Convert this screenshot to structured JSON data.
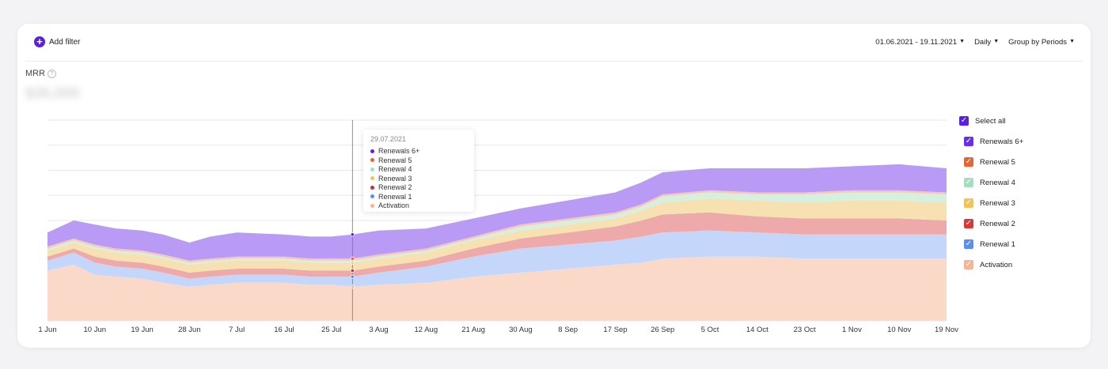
{
  "toolbar": {
    "add_filter": "Add filter",
    "date_range": "01.06.2021 - 19.11.2021",
    "interval": "Daily",
    "grouping": "Group by Periods"
  },
  "metric": {
    "label": "MRR",
    "value": "$35,000"
  },
  "legend": {
    "select_all": "Select all",
    "items": [
      {
        "name": "Renewals 6+",
        "color": "#6a2ee8"
      },
      {
        "name": "Renewal 5",
        "color": "#e6643a"
      },
      {
        "name": "Renewal 4",
        "color": "#a5dfc0"
      },
      {
        "name": "Renewal 3",
        "color": "#f1c45a"
      },
      {
        "name": "Renewal 2",
        "color": "#d63a3a"
      },
      {
        "name": "Renewal 1",
        "color": "#5a8ff0"
      },
      {
        "name": "Activation",
        "color": "#f6b594"
      }
    ]
  },
  "tooltip": {
    "date": "29.07.2021",
    "rows": [
      {
        "label": "Renewals 6+",
        "color": "#5b1fe0"
      },
      {
        "label": "Renewal 5",
        "color": "#e6643a"
      },
      {
        "label": "Renewal 4",
        "color": "#a5dfc0"
      },
      {
        "label": "Renewal 3",
        "color": "#f1c45a"
      },
      {
        "label": "Renewal 2",
        "color": "#c42f2f"
      },
      {
        "label": "Renewal 1",
        "color": "#5a8ff0"
      },
      {
        "label": "Activation",
        "color": "#f6b594"
      }
    ]
  },
  "chart_data": {
    "type": "area",
    "stacked": true,
    "x_tick_labels": [
      "1 Jun",
      "10 Jun",
      "19 Jun",
      "28 Jun",
      "7 Jul",
      "16 Jul",
      "25 Jul",
      "3 Aug",
      "12 Aug",
      "21 Aug",
      "30 Aug",
      "8 Sep",
      "17 Sep",
      "26 Sep",
      "5 Oct",
      "14 Oct",
      "23 Oct",
      "1 Nov",
      "10 Nov",
      "19 Nov"
    ],
    "x_day_offsets": [
      0,
      9,
      18,
      27,
      36,
      45,
      54,
      63,
      72,
      81,
      90,
      99,
      108,
      117,
      126,
      135,
      144,
      153,
      162,
      171
    ],
    "ylim": [
      0,
      100
    ],
    "grid": true,
    "legend_position": "right",
    "hover_day_offset": 58,
    "series": [
      {
        "name": "Activation",
        "color": "#fbd9c8",
        "x": [
          0,
          5,
          9,
          13,
          18,
          22,
          27,
          31,
          36,
          45,
          50,
          54,
          58,
          63,
          72,
          81,
          90,
          99,
          108,
          113,
          117,
          126,
          135,
          144,
          153,
          162,
          171
        ],
        "y": [
          25,
          28,
          23,
          22,
          21,
          19,
          17,
          18,
          19,
          19,
          18,
          18,
          17,
          18,
          19,
          22,
          24,
          26,
          28,
          29,
          31,
          32,
          32,
          31,
          31,
          31,
          31
        ]
      },
      {
        "name": "Renewal 1",
        "color": "#c4d7fa",
        "x": [
          0,
          5,
          9,
          13,
          18,
          22,
          27,
          31,
          36,
          45,
          50,
          54,
          58,
          63,
          72,
          81,
          90,
          99,
          108,
          113,
          117,
          126,
          135,
          144,
          153,
          162,
          171
        ],
        "y": [
          5,
          6,
          6,
          5,
          5,
          5,
          4,
          4,
          4,
          4,
          4,
          4,
          5,
          6,
          8,
          10,
          12,
          12,
          12,
          13,
          13,
          13,
          12,
          12,
          12,
          12,
          12
        ]
      },
      {
        "name": "Renewal 2",
        "color": "#eeaaaa",
        "x": [
          0,
          5,
          9,
          13,
          18,
          22,
          27,
          31,
          36,
          45,
          50,
          54,
          58,
          63,
          72,
          81,
          90,
          99,
          108,
          113,
          117,
          126,
          135,
          144,
          153,
          162,
          171
        ],
        "y": [
          2,
          2,
          3,
          3,
          3,
          3,
          3,
          3,
          3,
          3,
          3,
          3,
          3,
          3,
          3,
          4,
          5,
          6,
          7,
          8,
          9,
          9,
          8,
          8,
          8,
          8,
          7
        ]
      },
      {
        "name": "Renewal 3",
        "color": "#f7e1b3",
        "x": [
          0,
          5,
          9,
          13,
          18,
          22,
          27,
          31,
          36,
          45,
          50,
          54,
          58,
          63,
          72,
          81,
          90,
          99,
          108,
          113,
          117,
          126,
          135,
          144,
          153,
          162,
          171
        ],
        "y": [
          3,
          3,
          4,
          4,
          4,
          4,
          4,
          4,
          4,
          4,
          4,
          4,
          4,
          4,
          4,
          4,
          4,
          4,
          4,
          5,
          6,
          7,
          8,
          8,
          9,
          9,
          9
        ]
      },
      {
        "name": "Renewal 4",
        "color": "#d6f0e0",
        "x": [
          0,
          5,
          9,
          13,
          18,
          22,
          27,
          31,
          36,
          45,
          50,
          54,
          58,
          63,
          72,
          81,
          90,
          99,
          108,
          113,
          117,
          126,
          135,
          144,
          153,
          162,
          171
        ],
        "y": [
          1,
          1,
          1,
          1,
          1,
          1,
          1,
          1,
          1,
          1,
          1,
          1,
          1,
          1,
          1,
          1,
          2,
          2,
          2,
          2,
          3,
          3,
          3,
          4,
          4,
          4,
          4
        ]
      },
      {
        "name": "Renewal 5",
        "color": "#f6c9b0",
        "x": [
          0,
          5,
          9,
          13,
          18,
          22,
          27,
          31,
          36,
          45,
          50,
          54,
          58,
          63,
          72,
          81,
          90,
          99,
          108,
          113,
          117,
          126,
          135,
          144,
          153,
          162,
          171
        ],
        "y": [
          1,
          1,
          1,
          1,
          1,
          1,
          1,
          1,
          1,
          1,
          1,
          1,
          1,
          1,
          1,
          1,
          1,
          1,
          1,
          1,
          1,
          1,
          1,
          1,
          1,
          1,
          1
        ]
      },
      {
        "name": "Renewals 6+",
        "color": "#b99bf6",
        "x": [
          0,
          5,
          9,
          13,
          18,
          22,
          27,
          31,
          36,
          45,
          50,
          54,
          58,
          63,
          72,
          81,
          90,
          99,
          108,
          113,
          117,
          126,
          135,
          144,
          153,
          162,
          171
        ],
        "y": [
          7,
          9,
          10,
          10,
          10,
          10,
          9,
          11,
          12,
          11,
          11,
          11,
          12,
          12,
          10,
          9,
          8,
          9,
          10,
          11,
          11,
          11,
          12,
          12,
          12,
          13,
          12
        ]
      }
    ]
  }
}
